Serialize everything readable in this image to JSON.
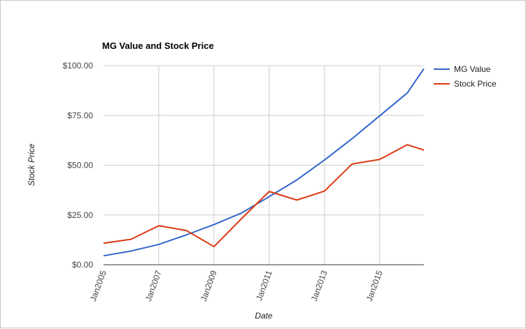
{
  "chart_data": {
    "type": "line",
    "title": "MG Value and Stock Price",
    "xlabel": "Date",
    "ylabel": "Stock Price",
    "x": [
      2005,
      2006,
      2007,
      2008,
      2009,
      2010,
      2011,
      2012,
      2013,
      2014,
      2015,
      2016,
      2016.6
    ],
    "x_ticks": [
      {
        "value": 2005,
        "label": "Jan2005"
      },
      {
        "value": 2007,
        "label": "Jan2007"
      },
      {
        "value": 2009,
        "label": "Jan2009"
      },
      {
        "value": 2011,
        "label": "Jan2011"
      },
      {
        "value": 2013,
        "label": "Jan2013"
      },
      {
        "value": 2015,
        "label": "Jan2015"
      }
    ],
    "xlim": [
      2005,
      2016.6
    ],
    "ylim": [
      0,
      100
    ],
    "y_ticks": [
      {
        "value": 0,
        "label": "$0.00"
      },
      {
        "value": 25,
        "label": "$25.00"
      },
      {
        "value": 50,
        "label": "$50.00"
      },
      {
        "value": 75,
        "label": "$75.00"
      },
      {
        "value": 100,
        "label": "$100.00"
      }
    ],
    "grid": true,
    "legend_position": "right",
    "series": [
      {
        "name": "MG Value",
        "color": "#3366cc",
        "values": [
          4.5,
          6.9,
          10.2,
          15.0,
          20.2,
          26.0,
          34.2,
          42.6,
          52.6,
          63.3,
          74.8,
          86.3,
          98.5
        ]
      },
      {
        "name": "Stock Price",
        "color": "#dc3912",
        "values": [
          10.8,
          12.8,
          19.6,
          17.2,
          9.1,
          23.2,
          36.8,
          32.5,
          37.0,
          50.6,
          52.9,
          60.3,
          57.6
        ]
      }
    ]
  }
}
